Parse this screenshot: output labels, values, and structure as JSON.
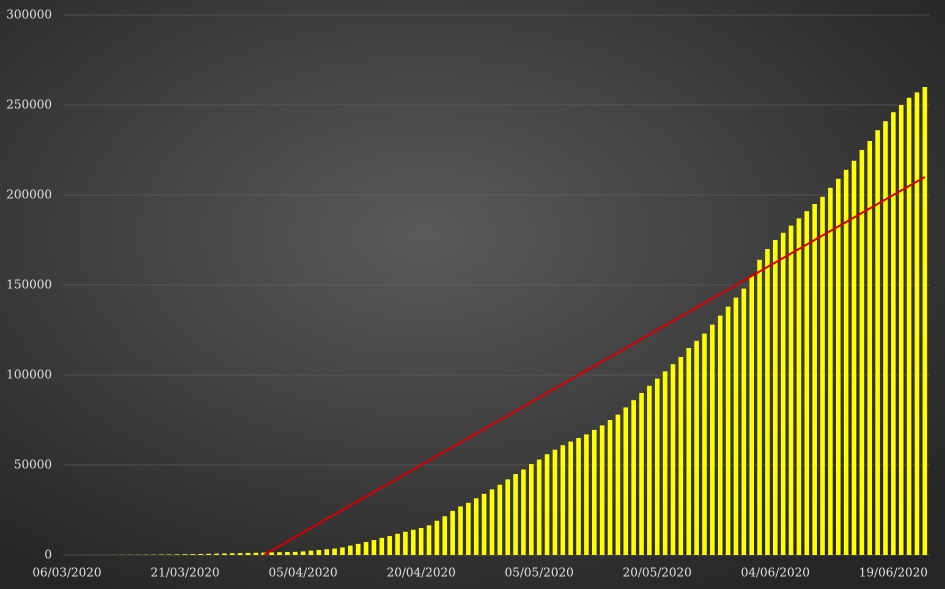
{
  "chart_data": {
    "type": "bar",
    "categories": [
      "06/03/2020",
      null,
      null,
      null,
      null,
      null,
      null,
      null,
      null,
      null,
      null,
      null,
      null,
      null,
      null,
      "21/03/2020",
      null,
      null,
      null,
      null,
      null,
      null,
      null,
      null,
      null,
      null,
      null,
      null,
      null,
      null,
      "05/04/2020",
      null,
      null,
      null,
      null,
      null,
      null,
      null,
      null,
      null,
      null,
      null,
      null,
      null,
      null,
      "20/04/2020",
      null,
      null,
      null,
      null,
      null,
      null,
      null,
      null,
      null,
      null,
      null,
      null,
      null,
      null,
      "05/05/2020",
      null,
      null,
      null,
      null,
      null,
      null,
      null,
      null,
      null,
      null,
      null,
      null,
      null,
      null,
      "20/05/2020",
      null,
      null,
      null,
      null,
      null,
      null,
      null,
      null,
      null,
      null,
      null,
      null,
      null,
      null,
      "04/06/2020",
      null,
      null,
      null,
      null,
      null,
      null,
      null,
      null,
      null,
      null,
      null,
      null,
      null,
      null,
      "19/06/2020",
      null,
      null,
      null,
      null
    ],
    "values": [
      20,
      25,
      30,
      38,
      45,
      55,
      70,
      90,
      110,
      140,
      170,
      210,
      250,
      300,
      360,
      430,
      500,
      580,
      660,
      750,
      850,
      950,
      1050,
      1150,
      1250,
      1350,
      1450,
      1550,
      1650,
      1750,
      2000,
      2400,
      2800,
      3200,
      3600,
      4200,
      5200,
      6200,
      7200,
      8300,
      9500,
      10500,
      11800,
      12900,
      14000,
      15000,
      16500,
      19000,
      21500,
      24500,
      27000,
      29000,
      31500,
      34000,
      36500,
      39000,
      42000,
      45000,
      47500,
      50500,
      53000,
      56000,
      58500,
      61000,
      63000,
      65000,
      67000,
      69500,
      72000,
      75000,
      78000,
      82000,
      86000,
      90000,
      94000,
      98000,
      102000,
      106000,
      110000,
      115000,
      119000,
      123000,
      128000,
      133000,
      138000,
      143000,
      148000,
      155000,
      164000,
      170000,
      175000,
      179000,
      183000,
      187000,
      191000,
      195000,
      199000,
      204000,
      209000,
      214000,
      219000,
      225000,
      230000,
      236000,
      241000,
      246000,
      250000,
      254000,
      257000,
      260000
    ],
    "color": "#ffff00",
    "trend": {
      "color": "#d40000",
      "values": [
        null,
        null,
        null,
        null,
        null,
        null,
        null,
        null,
        null,
        null,
        null,
        null,
        null,
        null,
        null,
        null,
        null,
        null,
        null,
        null,
        null,
        null,
        null,
        null,
        null,
        0,
        2500,
        5000,
        7500,
        10000,
        12500,
        15000,
        17500,
        20000,
        22500,
        25000,
        27500,
        30000,
        32500,
        35000,
        37500,
        40000,
        42500,
        45000,
        47500,
        50000,
        52500,
        55000,
        57500,
        60000,
        62500,
        65000,
        67500,
        70000,
        72500,
        75000,
        77500,
        80000,
        82500,
        85000,
        87500,
        90000,
        92500,
        95000,
        97500,
        100000,
        102500,
        105000,
        107500,
        110000,
        112500,
        115000,
        117500,
        120000,
        122500,
        125000,
        127500,
        130000,
        132500,
        135000,
        137500,
        140000,
        142500,
        145000,
        147500,
        150000,
        152500,
        155000,
        157500,
        160000,
        162500,
        165000,
        167500,
        170000,
        172500,
        175000,
        177500,
        180000,
        182500,
        185000,
        187500,
        190000,
        192500,
        195000,
        197500,
        200000,
        202500,
        205000,
        207500,
        210000
      ]
    },
    "ylim": [
      0,
      300000
    ],
    "yticks": [
      0,
      50000,
      100000,
      150000,
      200000,
      250000,
      300000
    ],
    "grid": true
  }
}
